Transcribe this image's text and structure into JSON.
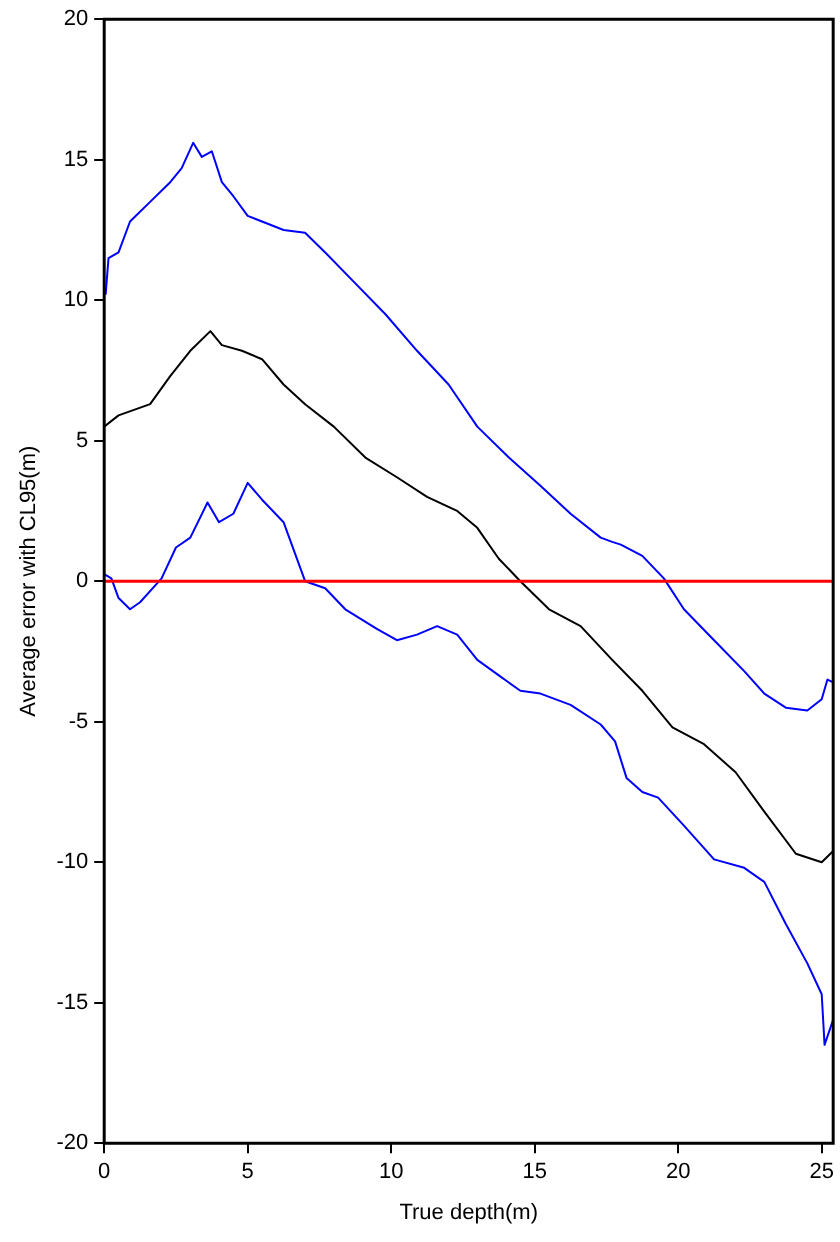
{
  "chart_data": {
    "type": "line",
    "xlabel": "True depth(m)",
    "ylabel": "Average error with CL95(m)",
    "xlim": [
      0,
      25.4
    ],
    "xticks": [
      0,
      5,
      10,
      15,
      20,
      25
    ],
    "ylim": [
      -20,
      20
    ],
    "yticks": [
      -20,
      -15,
      -10,
      -5,
      0,
      5,
      10,
      15,
      20
    ],
    "grid": false,
    "legend": false,
    "marker": "none",
    "line_style": "solid",
    "ref_lines": [
      {
        "axis": "y",
        "value": 0,
        "color": "#ff0000"
      }
    ],
    "series": [
      {
        "color": "#0000ff",
        "x": [
          0.05,
          0.15,
          0.5,
          0.9,
          1.6,
          2.3,
          2.7,
          3.1,
          3.4,
          3.75,
          4.1,
          4.5,
          5.0,
          5.5,
          6.25,
          7.0,
          7.7,
          8.75,
          9.8,
          10.9,
          12.0,
          13.0,
          14.1,
          15.2,
          16.25,
          17.3,
          17.7,
          18.0,
          18.75,
          19.5,
          20.2,
          21.25,
          22.3,
          23.0,
          23.75,
          24.5,
          25.0,
          25.2,
          25.4
        ],
        "values": [
          10.2,
          11.5,
          11.7,
          12.8,
          13.5,
          14.2,
          14.7,
          15.6,
          15.1,
          15.3,
          14.2,
          13.7,
          13.0,
          12.8,
          12.5,
          12.4,
          11.7,
          10.6,
          9.5,
          8.2,
          7.0,
          5.5,
          4.4,
          3.4,
          2.4,
          1.55,
          1.4,
          1.3,
          0.9,
          0.1,
          -1.0,
          -2.1,
          -3.2,
          -4.0,
          -4.5,
          -4.6,
          -4.2,
          -3.5,
          -3.6
        ]
      },
      {
        "color": "#000000",
        "x": [
          0,
          0.5,
          1.6,
          2.3,
          3.0,
          3.7,
          4.1,
          4.8,
          5.5,
          6.25,
          7.0,
          8.0,
          9.1,
          10.2,
          11.25,
          12.3,
          13.0,
          13.75,
          14.5,
          15.5,
          16.6,
          17.7,
          18.75,
          19.8,
          20.9,
          22.0,
          23.0,
          24.1,
          25.0,
          25.4
        ],
        "values": [
          5.5,
          5.9,
          6.3,
          7.3,
          8.2,
          8.9,
          8.4,
          8.2,
          7.9,
          7.0,
          6.3,
          5.5,
          4.4,
          3.7,
          3.0,
          2.5,
          1.9,
          0.8,
          0.0,
          -1.0,
          -1.6,
          -2.8,
          -3.9,
          -5.2,
          -5.8,
          -6.8,
          -8.2,
          -9.7,
          -10.0,
          -9.6
        ]
      },
      {
        "color": "#0000ff",
        "x": [
          0,
          0.25,
          0.5,
          0.9,
          1.25,
          2.0,
          2.5,
          3.0,
          3.6,
          4.0,
          4.5,
          5.0,
          5.5,
          6.25,
          7.0,
          7.7,
          8.4,
          9.5,
          10.2,
          10.9,
          11.6,
          12.3,
          13.0,
          13.75,
          14.5,
          15.2,
          16.25,
          17.3,
          17.8,
          18.2,
          18.75,
          19.3,
          20.2,
          21.25,
          22.3,
          23.0,
          23.75,
          24.5,
          25.0,
          25.1,
          25.4
        ],
        "values": [
          0.25,
          0.1,
          -0.6,
          -1.0,
          -0.75,
          0.1,
          1.2,
          1.55,
          2.8,
          2.1,
          2.4,
          3.5,
          2.9,
          2.1,
          0.0,
          -0.25,
          -1.0,
          -1.7,
          -2.1,
          -1.9,
          -1.6,
          -1.9,
          -2.8,
          -3.35,
          -3.9,
          -4.0,
          -4.4,
          -5.1,
          -5.7,
          -7.0,
          -7.5,
          -7.7,
          -8.7,
          -9.9,
          -10.2,
          -10.7,
          -12.2,
          -13.6,
          -14.7,
          -16.5,
          -15.6
        ]
      }
    ]
  }
}
